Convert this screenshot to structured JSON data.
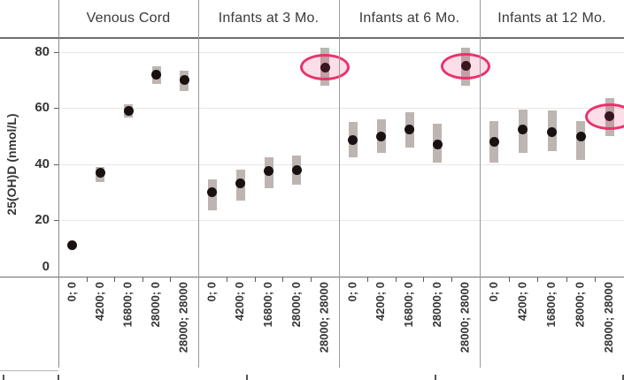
{
  "chart_data": {
    "type": "scatter",
    "title": "",
    "ylabel": "25(OH)D (nmol/L)",
    "ylim": [
      0,
      86
    ],
    "yticks": [
      0,
      20,
      40,
      60,
      80
    ],
    "grid": true,
    "legend": "none",
    "categories": [
      "0; 0",
      "4200; 0",
      "16800; 0",
      "28000; 0",
      "28000; 28000"
    ],
    "panels": [
      {
        "label": "Venous Cord",
        "points": [
          {
            "category": "0; 0",
            "value": 11,
            "ci_low": 11,
            "ci_high": 11,
            "circled": false
          },
          {
            "category": "4200; 0",
            "value": 37,
            "ci_low": 33.5,
            "ci_high": 39,
            "circled": false
          },
          {
            "category": "16800; 0",
            "value": 59,
            "ci_low": 56.5,
            "ci_high": 61.5,
            "circled": false
          },
          {
            "category": "28000; 0",
            "value": 72,
            "ci_low": 68.5,
            "ci_high": 75,
            "circled": false
          },
          {
            "category": "28000; 28000",
            "value": 70,
            "ci_low": 66,
            "ci_high": 73.5,
            "circled": false
          }
        ]
      },
      {
        "label": "Infants at 3 Mo.",
        "points": [
          {
            "category": "0; 0",
            "value": 30,
            "ci_low": 23.5,
            "ci_high": 34.5,
            "circled": false
          },
          {
            "category": "4200; 0",
            "value": 33,
            "ci_low": 27,
            "ci_high": 38,
            "circled": false
          },
          {
            "category": "16800; 0",
            "value": 37.5,
            "ci_low": 31.5,
            "ci_high": 42.5,
            "circled": false
          },
          {
            "category": "28000; 0",
            "value": 38,
            "ci_low": 32.5,
            "ci_high": 43,
            "circled": false
          },
          {
            "category": "28000; 28000",
            "value": 74.5,
            "ci_low": 68,
            "ci_high": 81.5,
            "circled": true
          }
        ]
      },
      {
        "label": "Infants at 6 Mo.",
        "points": [
          {
            "category": "0; 0",
            "value": 48.5,
            "ci_low": 42.5,
            "ci_high": 55,
            "circled": false
          },
          {
            "category": "4200; 0",
            "value": 50,
            "ci_low": 44,
            "ci_high": 56,
            "circled": false
          },
          {
            "category": "16800; 0",
            "value": 52.5,
            "ci_low": 46,
            "ci_high": 58.5,
            "circled": false
          },
          {
            "category": "28000; 0",
            "value": 47,
            "ci_low": 40.5,
            "ci_high": 54.5,
            "circled": false
          },
          {
            "category": "28000; 28000",
            "value": 75,
            "ci_low": 68,
            "ci_high": 81.5,
            "circled": true
          }
        ]
      },
      {
        "label": "Infants at 12 Mo.",
        "points": [
          {
            "category": "0; 0",
            "value": 48,
            "ci_low": 40.5,
            "ci_high": 55.5,
            "circled": false
          },
          {
            "category": "4200; 0",
            "value": 52.5,
            "ci_low": 44,
            "ci_high": 59.5,
            "circled": false
          },
          {
            "category": "16800; 0",
            "value": 51.5,
            "ci_low": 44.5,
            "ci_high": 59,
            "circled": false
          },
          {
            "category": "28000; 0",
            "value": 50,
            "ci_low": 41.5,
            "ci_high": 55.5,
            "circled": false
          },
          {
            "category": "28000; 28000",
            "value": 57,
            "ci_low": 50,
            "ci_high": 63.5,
            "circled": true
          }
        ]
      }
    ],
    "colors": {
      "dot": "#191111",
      "error_bar": "#b2a8a4",
      "highlight_ring": "#e8336b",
      "highlight_fill": "rgba(232,51,107,0.16)",
      "gridline": "#e9e7e4",
      "axis_line": "#6e6e6e",
      "panel_divider": "#9a9a9a",
      "text": "#363636"
    }
  }
}
